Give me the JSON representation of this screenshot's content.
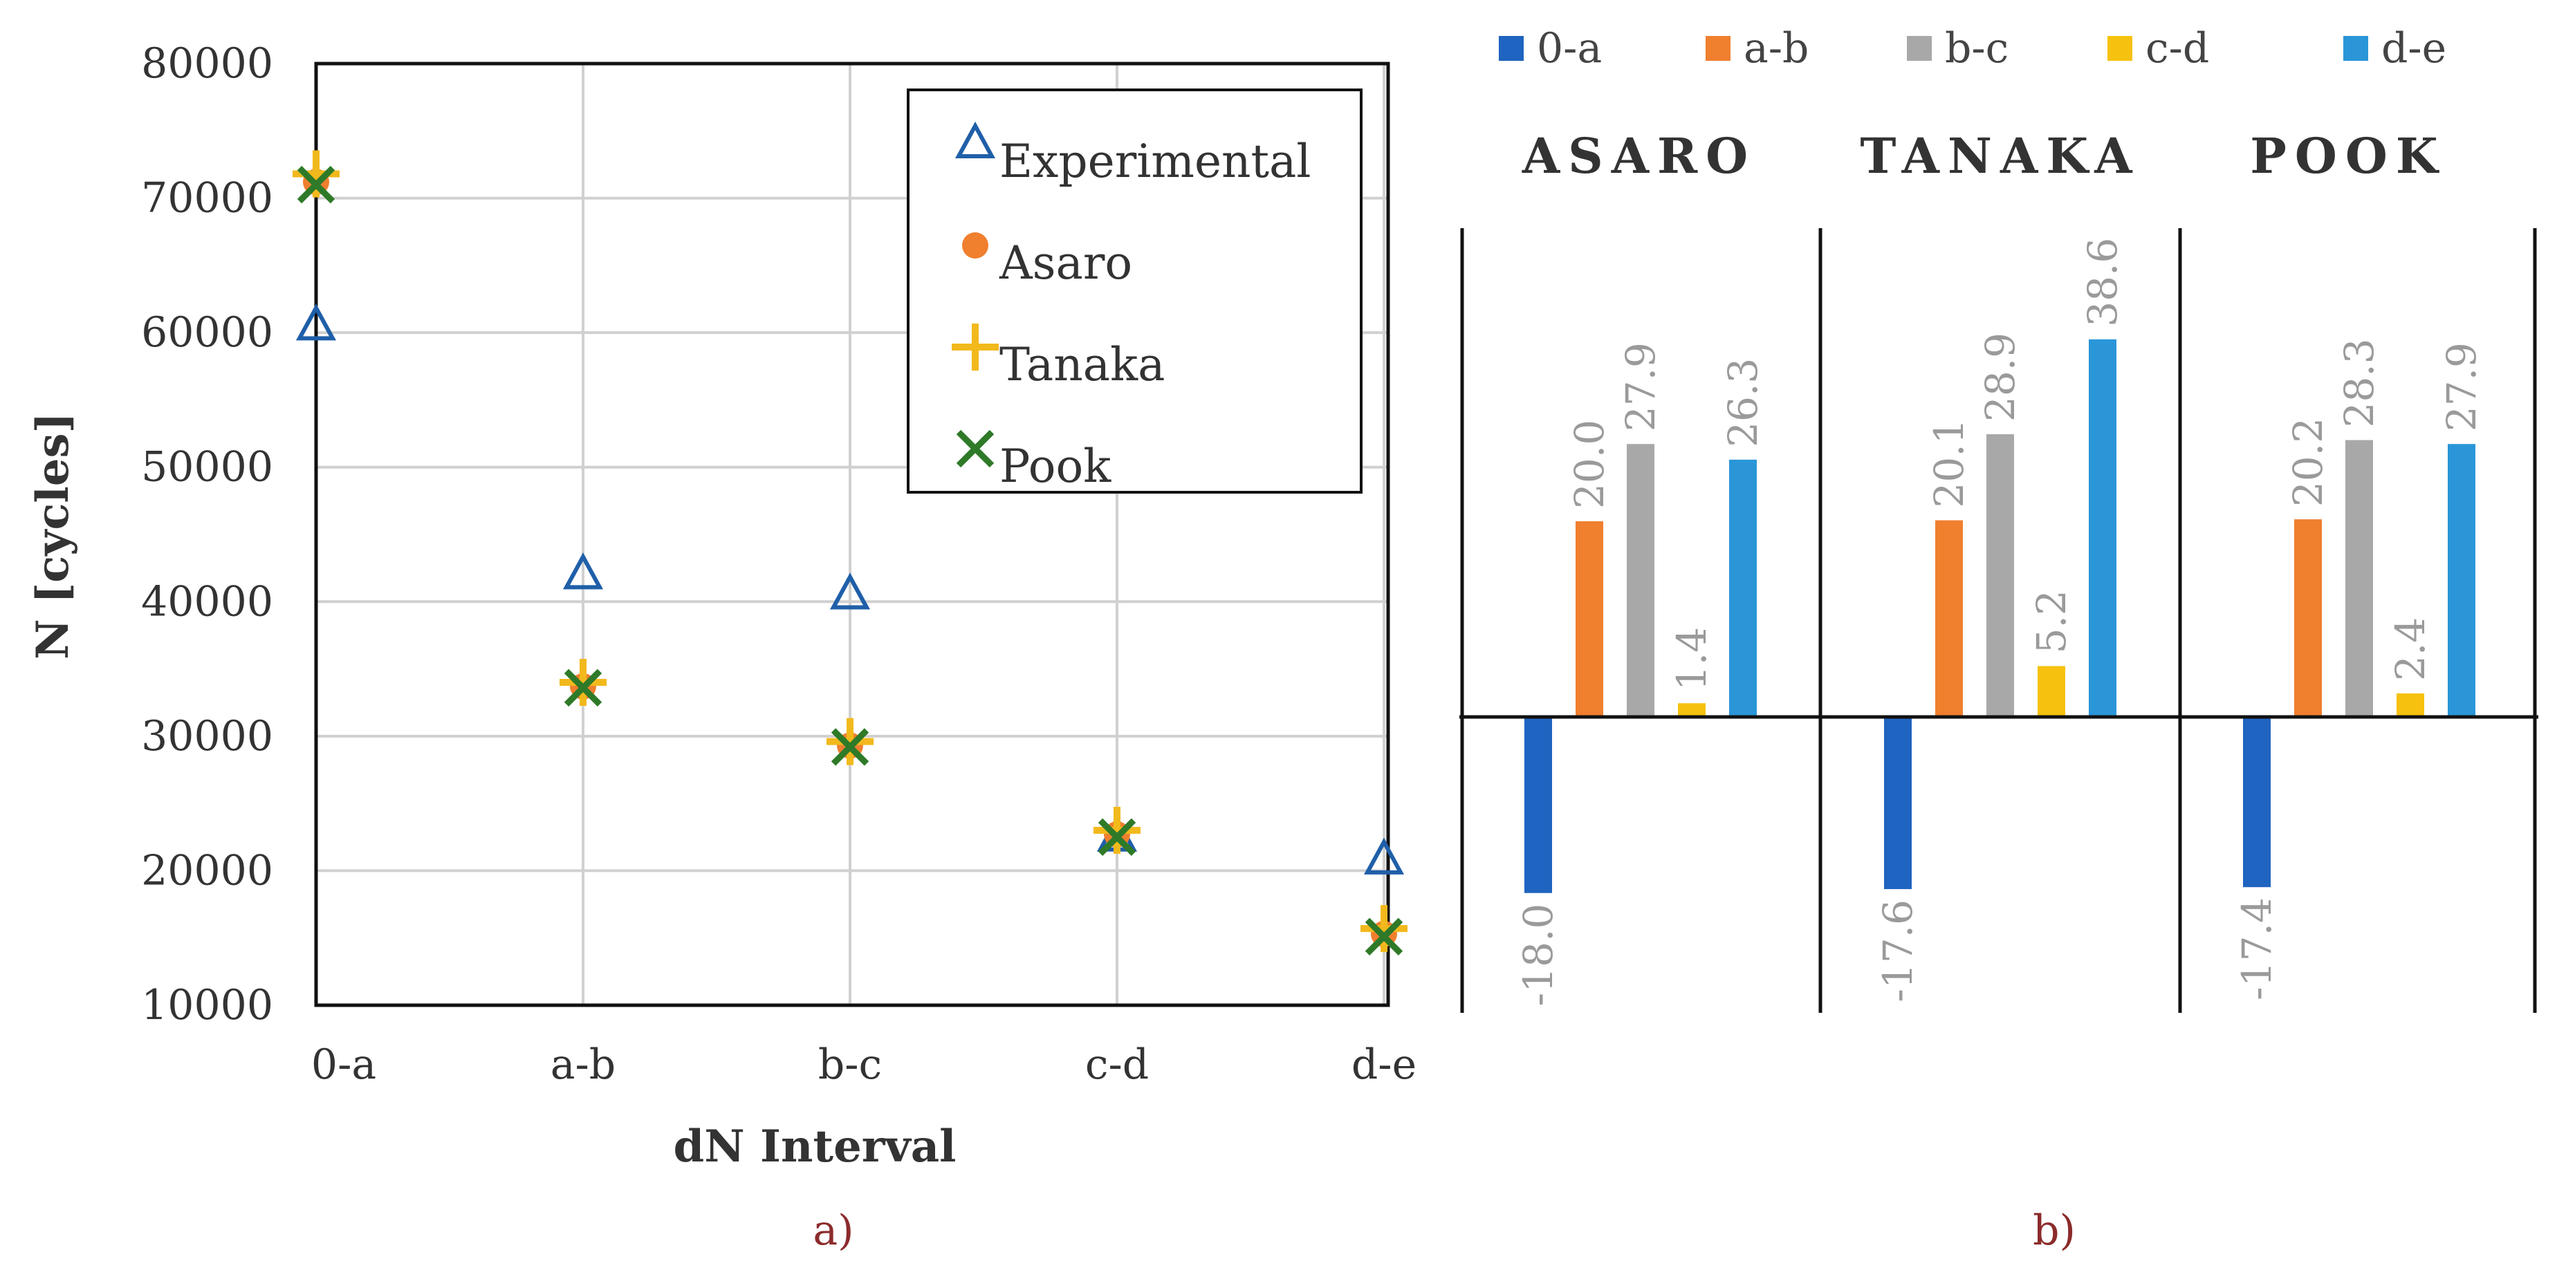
{
  "chart_data": [
    {
      "type": "scatter",
      "title": "",
      "xlabel": "dN Interval",
      "ylabel": "N [cycles]",
      "categories": [
        "0-a",
        "a-b",
        "b-c",
        "c-d",
        "d-e"
      ],
      "yticks": [
        "80000",
        "70000",
        "60000",
        "50000",
        "40000",
        "30000",
        "20000",
        "10000"
      ],
      "ylim": [
        10000,
        80000
      ],
      "grid": true,
      "legend_position": "top-right",
      "series": [
        {
          "name": "Experimental",
          "marker": "triangle",
          "color": "#1f5fa8",
          "values": [
            60500,
            42000,
            40500,
            22500,
            20800
          ]
        },
        {
          "name": "Asaro",
          "marker": "circle",
          "color": "#f07f2e",
          "values": [
            71200,
            33700,
            29300,
            22700,
            15300
          ]
        },
        {
          "name": "Tanaka",
          "marker": "plus",
          "color": "#f2b91c",
          "values": [
            71800,
            34000,
            29600,
            23000,
            15700
          ]
        },
        {
          "name": "Pook",
          "marker": "x",
          "color": "#2e7a28",
          "values": [
            71000,
            33600,
            29200,
            22500,
            15100
          ]
        }
      ],
      "caption": "a)"
    },
    {
      "type": "bar",
      "title": "",
      "groups": [
        "ASARO",
        "TANAKA",
        "POOK"
      ],
      "series": [
        {
          "name": "0-a",
          "color": "#1f64c0",
          "values": [
            -18.0,
            -17.6,
            -17.4
          ],
          "labels": [
            "-18.0",
            "-17.6",
            "-17.4"
          ]
        },
        {
          "name": "a-b",
          "color": "#f07f2e",
          "values": [
            20.0,
            20.1,
            20.2
          ],
          "labels": [
            "20.0",
            "20.1",
            "20.2"
          ]
        },
        {
          "name": "b-c",
          "color": "#a8a8a8",
          "values": [
            27.9,
            28.9,
            28.3
          ],
          "labels": [
            "27.9",
            "28.9",
            "28.3"
          ]
        },
        {
          "name": "c-d",
          "color": "#f6c20f",
          "values": [
            1.4,
            5.2,
            2.4
          ],
          "labels": [
            "1.4",
            "5.2",
            "2.4"
          ]
        },
        {
          "name": "d-e",
          "color": "#2a96d8",
          "values": [
            26.3,
            38.6,
            27.9
          ],
          "labels": [
            "26.3",
            "38.6",
            "27.9"
          ]
        }
      ],
      "legend_position": "top",
      "caption": "b)"
    }
  ]
}
